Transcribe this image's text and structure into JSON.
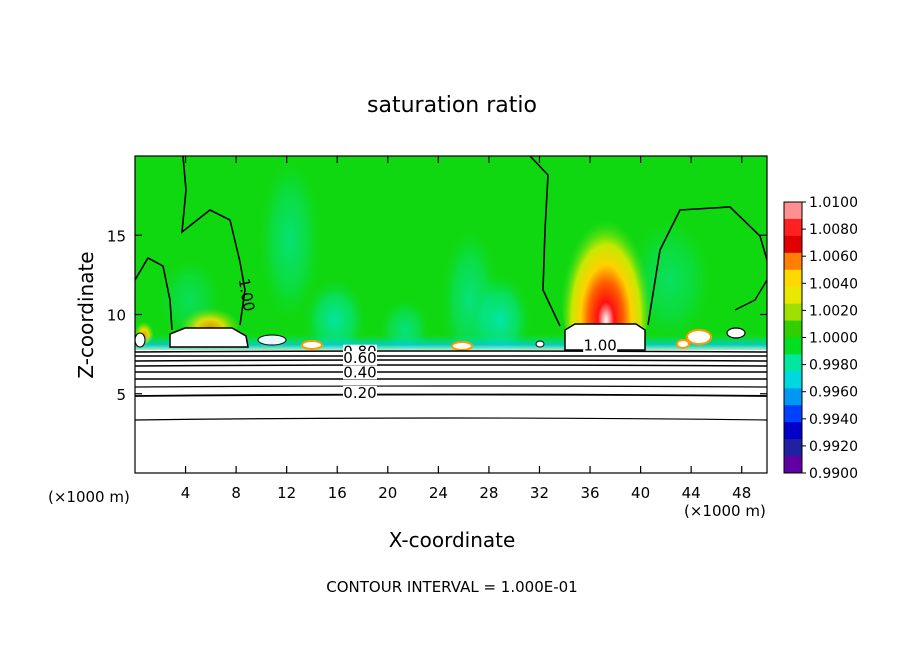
{
  "chart_data": {
    "type": "heatmap",
    "title": "saturation ratio",
    "xlabel": "X-coordinate",
    "ylabel": "Z-coordinate",
    "x_unit_left": "(×1000 m)",
    "x_unit_right": "(×1000 m)",
    "xlim": [
      0,
      50
    ],
    "ylim": [
      0,
      20
    ],
    "x_ticks": [
      "4",
      "8",
      "12",
      "16",
      "20",
      "24",
      "28",
      "32",
      "36",
      "40",
      "44",
      "48"
    ],
    "x_tick_values": [
      4,
      8,
      12,
      16,
      20,
      24,
      28,
      32,
      36,
      40,
      44,
      48
    ],
    "y_ticks": [
      "5",
      "10",
      "15"
    ],
    "y_tick_values": [
      5,
      10,
      15
    ],
    "footer": "CONTOUR INTERVAL = 1.000E-01",
    "colorbar": {
      "labels": [
        "1.0100",
        "1.0080",
        "1.0060",
        "1.0040",
        "1.0020",
        "1.0000",
        "0.9980",
        "0.9960",
        "0.9940",
        "0.9920",
        "0.9900"
      ],
      "colors": [
        "#ff9090",
        "#ff2020",
        "#e00000",
        "#ff8000",
        "#ffd800",
        "#e8e800",
        "#a0e000",
        "#30d000",
        "#00e020",
        "#00e8a0",
        "#00d8e0",
        "#0098f0",
        "#0040ff",
        "#0000c8",
        "#2020a0",
        "#6000a0"
      ]
    },
    "contour_labels": [
      {
        "text": "1.00",
        "x": 8.5,
        "z": 11.2
      },
      {
        "text": "1.00",
        "x": 36.8,
        "z": 7.8
      },
      {
        "text": "0.80",
        "x": 17.8,
        "z": 7.4
      },
      {
        "text": "0.60",
        "x": 17.8,
        "z": 7.0
      },
      {
        "text": "0.40",
        "x": 17.8,
        "z": 6.1
      },
      {
        "text": "0.20",
        "x": 17.8,
        "z": 4.8
      }
    ],
    "contour_levels": [
      0.2,
      0.3,
      0.4,
      0.5,
      0.6,
      0.7,
      0.8,
      0.9,
      1.0
    ]
  }
}
